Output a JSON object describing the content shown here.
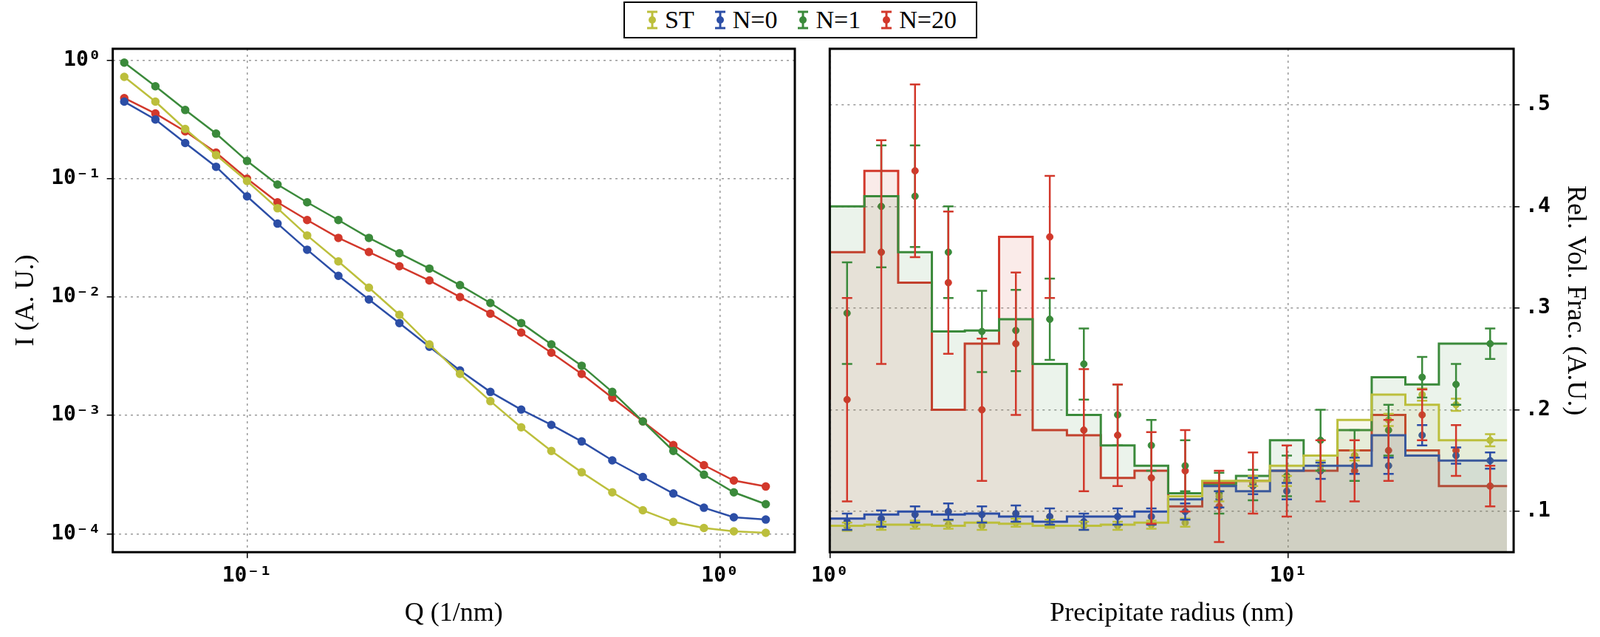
{
  "chart_data": [
    {
      "type": "line",
      "x_label": "Q (1/nm)",
      "y_label": "I (A. U.)",
      "log": true,
      "grid": true,
      "legend": "top",
      "marker": "circle",
      "x": [
        0.055,
        0.064,
        0.074,
        0.086,
        0.1,
        0.116,
        0.134,
        0.156,
        0.181,
        0.21,
        0.243,
        0.282,
        0.327,
        0.38,
        0.44,
        0.51,
        0.592,
        0.687,
        0.797,
        0.925,
        1.07,
        1.25
      ],
      "xlim": [
        0.052,
        1.44
      ],
      "ylim": [
        7e-05,
        1.25
      ],
      "xticks": [
        {
          "value": 0.1,
          "label": "10⁻¹"
        },
        {
          "value": 1,
          "label": "10⁰"
        }
      ],
      "yticks": [
        {
          "value": 0.0001,
          "label": "10⁻⁴"
        },
        {
          "value": 0.001,
          "label": "10⁻³"
        },
        {
          "value": 0.01,
          "label": "10⁻²"
        },
        {
          "value": 0.1,
          "label": "10⁻¹"
        },
        {
          "value": 1,
          "label": "10⁰"
        }
      ],
      "series": [
        {
          "name": "ST",
          "color": "#bcbf3c",
          "values": [
            0.724,
            0.447,
            0.263,
            0.158,
            0.0955,
            0.0562,
            0.0331,
            0.02,
            0.012,
            0.00708,
            0.00398,
            0.00224,
            0.00132,
            0.000794,
            0.000501,
            0.000331,
            0.000224,
            0.000158,
            0.000126,
            0.000112,
            0.000105,
            0.000102
          ]
        },
        {
          "name": "N=0",
          "color": "#2c4ea6",
          "values": [
            0.447,
            0.316,
            0.2,
            0.126,
            0.0708,
            0.0417,
            0.0251,
            0.0151,
            0.00955,
            0.00603,
            0.0038,
            0.0024,
            0.00158,
            0.00112,
            0.000832,
            0.000603,
            0.000417,
            0.000302,
            0.000219,
            0.000166,
            0.000138,
            0.000132
          ]
        },
        {
          "name": "N=1",
          "color": "#3b8a3b",
          "values": [
            0.955,
            0.603,
            0.38,
            0.24,
            0.141,
            0.0891,
            0.0631,
            0.0447,
            0.0316,
            0.0234,
            0.0174,
            0.0126,
            0.00891,
            0.00603,
            0.00398,
            0.00263,
            0.00158,
            0.000891,
            0.000501,
            0.000316,
            0.000224,
            0.000178
          ]
        },
        {
          "name": "N=20",
          "color": "#d2382b",
          "values": [
            0.479,
            0.355,
            0.251,
            0.166,
            0.1,
            0.0631,
            0.0447,
            0.0316,
            0.024,
            0.0182,
            0.0138,
            0.01,
            0.00724,
            0.00501,
            0.00339,
            0.00224,
            0.00141,
            0.000891,
            0.000562,
            0.00038,
            0.000282,
            0.000251
          ]
        }
      ]
    },
    {
      "type": "histogram",
      "x_label": "Precipitate radius (nm)",
      "y_label": "Rel. Vol. Frac. (A.U.)",
      "log": "x",
      "grid": true,
      "marker": "circle",
      "bins": [
        1,
        1.19,
        1.41,
        1.67,
        1.97,
        2.34,
        2.77,
        3.29,
        3.9,
        4.62,
        5.47,
        6.49,
        7.69,
        9.12,
        10.8,
        12.8,
        15.2,
        18,
        21.3,
        25.3,
        30
      ],
      "xlim": [
        1,
        31
      ],
      "ylim": [
        0.06,
        0.555
      ],
      "xticks": [
        {
          "value": 1,
          "label": "10⁰"
        },
        {
          "value": 10,
          "label": "10¹"
        }
      ],
      "yticks": [
        {
          "value": 0.1,
          "label": ".1"
        },
        {
          "value": 0.2,
          "label": ".2"
        },
        {
          "value": 0.3,
          "label": ".3"
        },
        {
          "value": 0.4,
          "label": ".4"
        },
        {
          "value": 0.5,
          "label": ".5"
        }
      ],
      "series": [
        {
          "name": "ST",
          "color": "#bcbf3c",
          "values": [
            0.085,
            0.086,
            0.087,
            0.087,
            0.086,
            0.089,
            0.088,
            0.086,
            0.086,
            0.087,
            0.089,
            0.115,
            0.13,
            0.13,
            0.145,
            0.155,
            0.19,
            0.215,
            0.205,
            0.17
          ],
          "errors": [
            0.004,
            0.004,
            0.004,
            0.004,
            0.004,
            0.004,
            0.004,
            0.004,
            0.004,
            0.004,
            0.004,
            0.005,
            0.005,
            0.005,
            0.005,
            0.005,
            0.006,
            0.006,
            0.006,
            0.006
          ]
        },
        {
          "name": "N=0",
          "color": "#2c4ea6",
          "values": [
            0.09,
            0.093,
            0.097,
            0.1,
            0.097,
            0.098,
            0.095,
            0.09,
            0.095,
            0.095,
            0.1,
            0.112,
            0.125,
            0.12,
            0.14,
            0.145,
            0.145,
            0.175,
            0.155,
            0.15
          ],
          "errors": [
            0.008,
            0.008,
            0.008,
            0.008,
            0.008,
            0.008,
            0.008,
            0.008,
            0.008,
            0.008,
            0.008,
            0.008,
            0.008,
            0.008,
            0.008,
            0.008,
            0.008,
            0.01,
            0.008,
            0.008
          ]
        },
        {
          "name": "N=1",
          "color": "#3b8a3b",
          "values": [
            0.295,
            0.4,
            0.41,
            0.355,
            0.277,
            0.278,
            0.289,
            0.245,
            0.195,
            0.165,
            0.145,
            0.118,
            0.126,
            0.135,
            0.17,
            0.155,
            0.18,
            0.232,
            0.225,
            0.265
          ],
          "errors": [
            0.05,
            0.06,
            0.05,
            0.045,
            0.04,
            0.04,
            0.04,
            0.035,
            0.03,
            0.025,
            0.025,
            0.02,
            0.015,
            0.02,
            0.03,
            0.025,
            0.025,
            0.02,
            0.02,
            0.015
          ]
        },
        {
          "name": "N=20",
          "color": "#d2382b",
          "values": [
            0.21,
            0.355,
            0.435,
            0.325,
            0.2,
            0.265,
            0.37,
            0.18,
            0.175,
            0.133,
            0.14,
            0.105,
            0.128,
            0.13,
            0.14,
            0.14,
            0.16,
            0.195,
            0.16,
            0.125
          ],
          "errors": [
            0.1,
            0.11,
            0.085,
            0.07,
            0.07,
            0.07,
            0.06,
            0.06,
            0.05,
            0.045,
            0.04,
            0.035,
            0.03,
            0.035,
            0.03,
            0.03,
            0.03,
            0.025,
            0.025,
            0.02
          ]
        }
      ]
    }
  ]
}
